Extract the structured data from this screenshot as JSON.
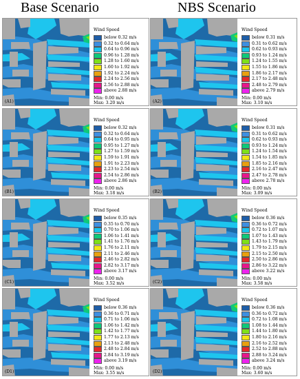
{
  "titles": {
    "left": "Base Scenario",
    "right": "NBS Scenario"
  },
  "legend_title": "Wind Speed",
  "colors": [
    "#1f5ea8",
    "#3f8fe0",
    "#19c4ee",
    "#10c87a",
    "#7ee01a",
    "#f2e614",
    "#e8a010",
    "#e4282a",
    "#e6178a",
    "#ee22ee"
  ],
  "map_colors": {
    "land": "#a9a9a9",
    "background": "#1e6aa8",
    "mid": "#2f8fd8",
    "light": "#1ec5ee"
  },
  "panels": [
    {
      "label": "(A1)",
      "legend": [
        "below 0.32 m/s",
        "0.32 to 0.64 m/s",
        "0.64 to 0.96 m/s",
        "0.96 to 1.28 m/s",
        "1.28 to 1.60 m/s",
        "1.60 to 1.92 m/s",
        "1.92 to 2.24 m/s",
        "2.24 to 2.56 m/s",
        "2.56 to 2.88 m/s",
        "above 2.88 m/s"
      ],
      "min": "Min: 0.00 m/s",
      "max": "Max: 3.20 m/s"
    },
    {
      "label": "(A2)",
      "legend": [
        "below 0.31 m/s",
        "0.31 to 0.62 m/s",
        "0.62 to 0.93 m/s",
        "0.93 to 1.24 m/s",
        "1.24 to 1.55 m/s",
        "1.55 to 1.86 m/s",
        "1.86 to 2.17 m/s",
        "2.17 to 2.48 m/s",
        "2.48 to 2.79 m/s",
        "above 2.79 m/s"
      ],
      "min": "Min: 0.00 m/s",
      "max": "Max: 3.10 m/s"
    },
    {
      "label": "(B1)",
      "legend": [
        "below 0.32 m/s",
        "0.32 to 0.64 m/s",
        "0.64 to 0.95 m/s",
        "0.95 to 1.27 m/s",
        "1.27 to 1.59 m/s",
        "1.59 to 1.91 m/s",
        "1.91 to 2.23 m/s",
        "2.23 to 2.54 m/s",
        "2.54 to 2.86 m/s",
        "above 2.86 m/s"
      ],
      "min": "Min: 0.00 m/s",
      "max": "Max: 3.18 m/s"
    },
    {
      "label": "(B2)",
      "legend": [
        "below 0.31 m/s",
        "0.31 to 0.62 m/s",
        "0.62 to 0.93 m/s",
        "0.93 to 1.24 m/s",
        "1.24 to 1.54 m/s",
        "1.54 to 1.85 m/s",
        "1.85 to 2.16 m/s",
        "2.16 to 2.47 m/s",
        "2.47 to 2.78 m/s",
        "above 2.78 m/s"
      ],
      "min": "Min: 0.00 m/s",
      "max": "Max: 3.09 m/s"
    },
    {
      "label": "(C1)",
      "legend": [
        "below 0.35 m/s",
        "0.35 to 0.70 m/s",
        "0.70 to 1.06 m/s",
        "1.06 to 1.41 m/s",
        "1.41 to 1.76 m/s",
        "1.76 to 2.11 m/s",
        "2.11 to 2.46 m/s",
        "2.46 to 2.82 m/s",
        "2.82 to 3.17 m/s",
        "above 3.17 m/s"
      ],
      "min": "Min: 0.00 m/s",
      "max": "Max: 3.52 m/s"
    },
    {
      "label": "(C2)",
      "legend": [
        "below 0.36 m/s",
        "0.36 to 0.72 m/s",
        "0.72 to 1.07 m/s",
        "1.07 to 1.43 m/s",
        "1.43 to 1.79 m/s",
        "1.79 to 2.15 m/s",
        "2.15 to 2.50 m/s",
        "2.50 to 2.86 m/s",
        "2.86 to 3.22 m/s",
        "above 3.22 m/s"
      ],
      "min": "Min: 0.00 m/s",
      "max": "Max: 3.58 m/s"
    },
    {
      "label": "(D1)",
      "legend": [
        "below 0.36 m/s",
        "0.36 to 0.71 m/s",
        "0.71 to 1.06 m/s",
        "1.06 to 1.42 m/s",
        "1.42 to 1.77 m/s",
        "1.77 to 2.13 m/s",
        "2.13 to 2.48 m/s",
        "2.48 to 2.84 m/s",
        "2.84 to 3.19 m/s",
        "above 3.19 m/s"
      ],
      "min": "Min: 0.00 m/s",
      "max": "Max: 3.55 m/s"
    },
    {
      "label": "(D2)",
      "legend": [
        "below 0.36 m/s",
        "0.36 to 0.72 m/s",
        "0.72 to 1.08 m/s",
        "1.08 to 1.44 m/s",
        "1.44 to 1.80 m/s",
        "1.80 to 2.16 m/s",
        "2.16 to 2.52 m/s",
        "2.52 to 2.88 m/s",
        "2.88 to 3.24 m/s",
        "above 3.24 m/s"
      ],
      "min": "Min: 0.00 m/s",
      "max": "Max: 3.60 m/s"
    }
  ]
}
